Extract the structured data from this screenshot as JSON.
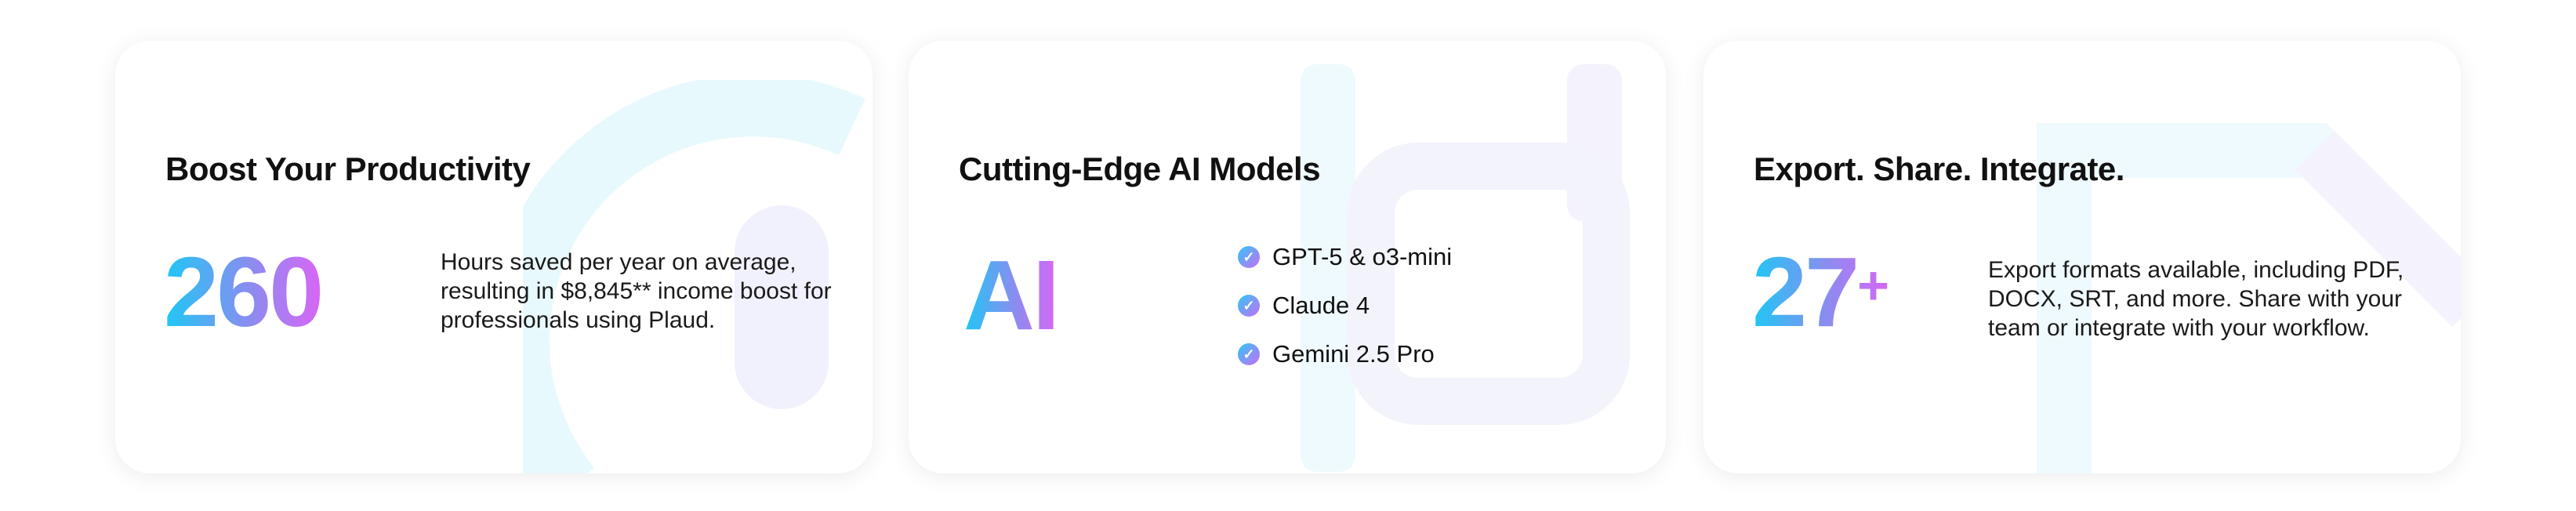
{
  "cards": [
    {
      "title": "Boost Your Productivity",
      "stat": "260",
      "description": "Hours saved per year on average, resulting in $8,845** income boost for professionals using Plaud."
    },
    {
      "title": "Cutting-Edge AI Models",
      "stat": "AI",
      "models": [
        "GPT-5 & o3-mini",
        "Claude 4",
        "Gemini 2.5 Pro"
      ],
      "check_icon": "check-circle-icon"
    },
    {
      "title": "Export. Share. Integrate.",
      "stat": "27",
      "stat_suffix": "+",
      "description": "Export formats available, including PDF, DOCX, SRT, and more. Share with your team or integrate with your workflow."
    }
  ],
  "colors": {
    "gradient_start": "#1ec8f5",
    "gradient_mid": "#8b8cf0",
    "gradient_end": "#d866f5"
  }
}
